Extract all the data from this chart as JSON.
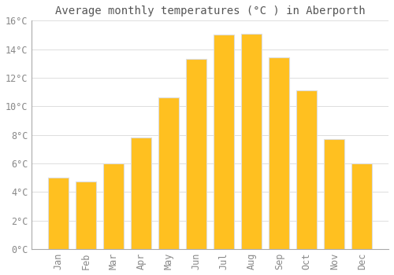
{
  "title": "Average monthly temperatures (°C ) in Aberporth",
  "months": [
    "Jan",
    "Feb",
    "Mar",
    "Apr",
    "May",
    "Jun",
    "Jul",
    "Aug",
    "Sep",
    "Oct",
    "Nov",
    "Dec"
  ],
  "values": [
    5.0,
    4.7,
    6.0,
    7.8,
    10.6,
    13.3,
    15.0,
    15.1,
    13.4,
    11.1,
    7.7,
    6.0
  ],
  "bar_color_top": "#FFC020",
  "bar_color_bottom": "#E8A000",
  "bar_edge_color": "#DDDDDD",
  "background_color": "#FFFFFF",
  "grid_color": "#DDDDDD",
  "ylim": [
    0,
    16
  ],
  "ytick_step": 2,
  "title_fontsize": 10,
  "tick_fontsize": 8.5,
  "font_family": "monospace",
  "tick_color": "#888888",
  "title_color": "#555555",
  "bar_width": 0.75
}
